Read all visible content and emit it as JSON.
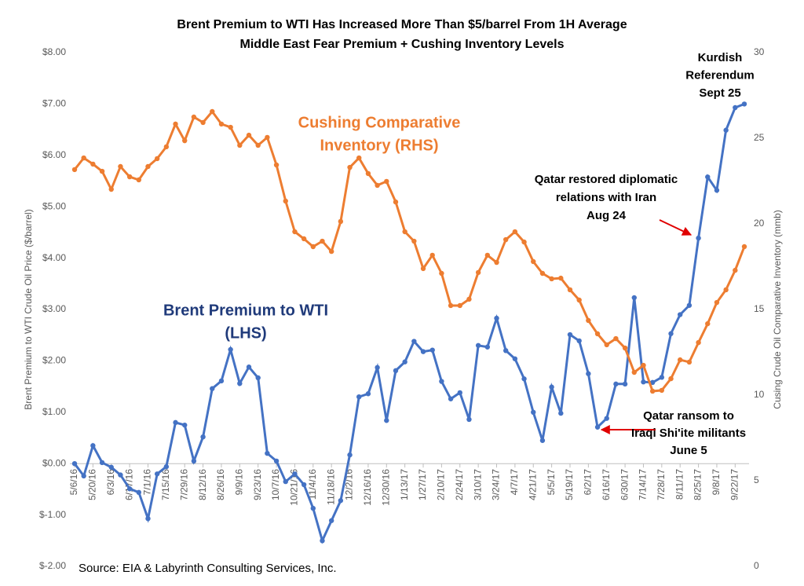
{
  "chart_data": {
    "type": "line",
    "title": [
      "Brent Premium to WTI Has Increased  More Than $5/barrel From 1H Average",
      "Middle East Fear Premium + Cushing Inventory Levels"
    ],
    "ylabel": "Brent Premium to WTI Crude Oil Price ($/barrel)",
    "y2label": "Cusing Crude Oil Comparative Inventory (mmb)",
    "source": "Source: EIA & Labyrinth Consulting Services, Inc.",
    "categories": [
      "5/6/16",
      null,
      "5/20/16",
      null,
      "6/3/16",
      null,
      "6/17/16",
      null,
      "7/1/16",
      null,
      "7/15/16",
      null,
      "7/29/16",
      null,
      "8/12/16",
      null,
      "8/26/16",
      null,
      "9/9/16",
      null,
      "9/23/16",
      null,
      "10/7/16",
      null,
      "10/21/16",
      null,
      "11/4/16",
      null,
      "11/18/16",
      null,
      "12/2/16",
      null,
      "12/16/16",
      null,
      "12/30/16",
      null,
      "1/13/17",
      null,
      "1/27/17",
      null,
      "2/10/17",
      null,
      "2/24/17",
      null,
      "3/10/17",
      null,
      "3/24/17",
      null,
      "4/7/17",
      null,
      "4/21/17",
      null,
      "5/5/17",
      null,
      "5/19/17",
      null,
      "6/2/17",
      null,
      "6/16/17",
      null,
      "6/30/17",
      null,
      "7/14/17",
      null,
      "7/28/17",
      null,
      "8/11/17",
      null,
      "8/25/17",
      null,
      "9/8/17",
      null,
      "9/22/17",
      null
    ],
    "series": [
      {
        "name": "Brent Premium to WTI",
        "color": "#4472c4",
        "axis": "y",
        "values": [
          0.0,
          -0.24,
          0.35,
          0.02,
          -0.07,
          -0.22,
          -0.49,
          -0.56,
          -1.07,
          -0.2,
          -0.06,
          0.8,
          0.75,
          0.05,
          0.52,
          1.46,
          1.61,
          2.22,
          1.56,
          1.88,
          1.67,
          0.2,
          0.05,
          -0.35,
          -0.2,
          -0.41,
          -0.87,
          -1.5,
          -1.11,
          -0.72,
          0.17,
          1.3,
          1.36,
          1.87,
          0.84,
          1.81,
          1.98,
          2.38,
          2.18,
          2.21,
          1.6,
          1.26,
          1.38,
          0.86,
          2.3,
          2.27,
          2.83,
          2.2,
          2.04,
          1.65,
          1.0,
          0.45,
          1.49,
          0.98,
          2.51,
          2.39,
          1.75,
          0.71,
          0.88,
          1.55,
          1.55,
          3.23,
          1.59,
          1.58,
          1.68,
          2.53,
          2.9,
          3.08,
          4.39,
          5.58,
          5.32,
          6.49,
          6.93,
          7.0
        ]
      },
      {
        "name": "Cushing Comparative Inventory",
        "color": "#ed7d31",
        "axis": "y2",
        "values": [
          23.17,
          23.85,
          23.49,
          23.07,
          22.02,
          23.35,
          22.75,
          22.57,
          23.35,
          23.81,
          24.5,
          25.83,
          24.86,
          26.24,
          25.92,
          26.56,
          25.83,
          25.64,
          24.59,
          25.18,
          24.59,
          25.05,
          23.44,
          21.33,
          19.54,
          19.13,
          18.67,
          18.99,
          18.39,
          20.14,
          23.3,
          23.85,
          22.94,
          22.25,
          22.48,
          21.28,
          19.54,
          18.99,
          17.39,
          18.17,
          17.11,
          15.23,
          15.23,
          15.6,
          17.16,
          18.17,
          17.75,
          19.08,
          19.54,
          18.94,
          17.8,
          17.11,
          16.79,
          16.83,
          16.15,
          15.55,
          14.36,
          13.58,
          12.94,
          13.3,
          12.75,
          11.33,
          11.74,
          10.23,
          10.28,
          10.96,
          12.06,
          11.93,
          13.07,
          14.17,
          15.41,
          16.15,
          17.29,
          18.67
        ]
      }
    ],
    "ylim": [
      -2,
      8
    ],
    "yticks": [
      {
        "value": -2,
        "label": "$-2.00"
      },
      {
        "value": -1,
        "label": "$-1.00"
      },
      {
        "value": 0,
        "label": "$0.00"
      },
      {
        "value": 1,
        "label": "$1.00"
      },
      {
        "value": 2,
        "label": "$2.00"
      },
      {
        "value": 3,
        "label": "$3.00"
      },
      {
        "value": 4,
        "label": "$4.00"
      },
      {
        "value": 5,
        "label": "$5.00"
      },
      {
        "value": 6,
        "label": "$6.00"
      },
      {
        "value": 7,
        "label": "$7.00"
      },
      {
        "value": 8,
        "label": "$8.00"
      }
    ],
    "y2lim": [
      0,
      30
    ],
    "y2ticks": [
      0,
      5,
      10,
      15,
      20,
      25,
      30
    ],
    "grid": false,
    "annotations": [
      {
        "lines": [
          "Cushing Comparative",
          "Inventory (RHS)"
        ],
        "color": "#ed7d31"
      },
      {
        "lines": [
          "Brent Premium to WTI",
          "(LHS)"
        ],
        "color": "#1f3a7a"
      },
      {
        "lines": [
          "Kurdish",
          "Referendum",
          "Sept 25"
        ],
        "color": "#000000"
      },
      {
        "lines": [
          "Qatar restored diplomatic",
          "relations with Iran",
          "Aug 24"
        ],
        "color": "#000000"
      },
      {
        "lines": [
          "Qatar ransom to",
          "Iraqi Shi'ite militants",
          "June 5"
        ],
        "color": "#000000"
      }
    ]
  }
}
